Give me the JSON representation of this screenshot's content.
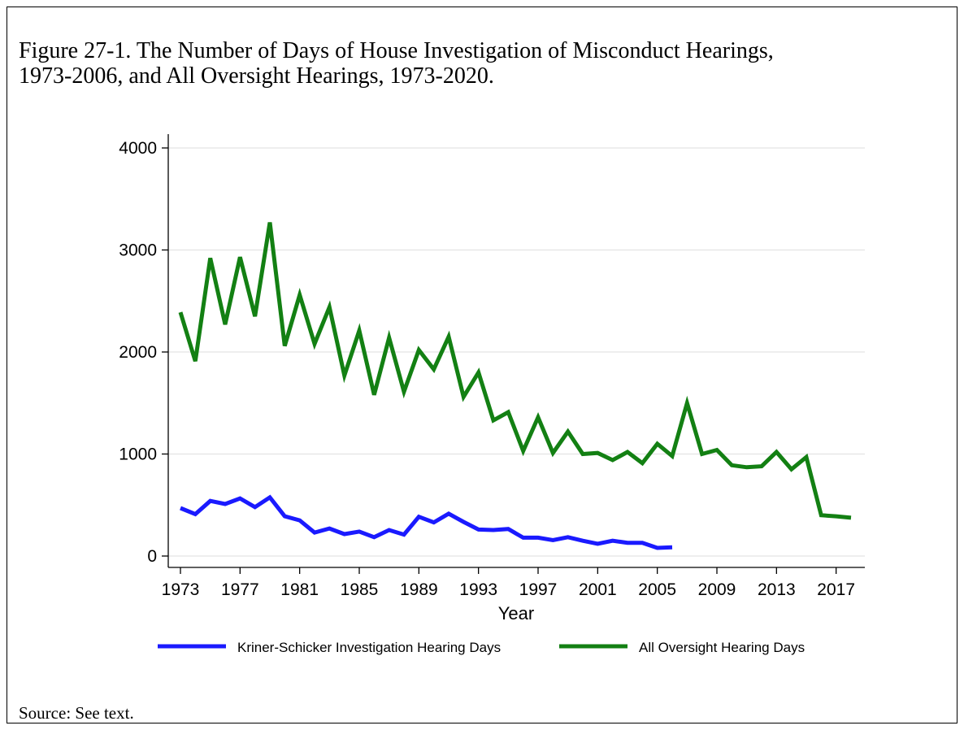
{
  "title": {
    "line1": "Figure 27-1. The Number of Days of House Investigation of Misconduct Hearings,",
    "line2": "1973-2006, and All Oversight Hearings, 1973-2020."
  },
  "source": "Source: See text.",
  "chart_data": {
    "type": "line",
    "xlabel": "Year",
    "ylabel": "",
    "xlim": [
      1973,
      2018
    ],
    "ylim": [
      0,
      4000
    ],
    "xticks": [
      1973,
      1977,
      1981,
      1985,
      1989,
      1993,
      1997,
      2001,
      2005,
      2009,
      2013,
      2017
    ],
    "yticks": [
      0,
      1000,
      2000,
      3000,
      4000
    ],
    "grid": true,
    "legend_position": "bottom",
    "series": [
      {
        "name": "Kriner-Schicker Investigation Hearing Days",
        "color": "#1a1aff",
        "x": [
          1973,
          1974,
          1975,
          1976,
          1977,
          1978,
          1979,
          1980,
          1981,
          1982,
          1983,
          1984,
          1985,
          1986,
          1987,
          1988,
          1989,
          1990,
          1991,
          1992,
          1993,
          1994,
          1995,
          1996,
          1997,
          1998,
          1999,
          2000,
          2001,
          2002,
          2003,
          2004,
          2005,
          2006
        ],
        "y": [
          470,
          410,
          540,
          510,
          565,
          480,
          575,
          390,
          350,
          230,
          270,
          215,
          240,
          185,
          255,
          210,
          385,
          330,
          415,
          335,
          260,
          255,
          265,
          180,
          180,
          155,
          185,
          150,
          120,
          150,
          130,
          130,
          80,
          85
        ]
      },
      {
        "name": "All Oversight Hearing Days",
        "color": "#138013",
        "x": [
          1973,
          1974,
          1975,
          1976,
          1977,
          1978,
          1979,
          1980,
          1981,
          1982,
          1983,
          1984,
          1985,
          1986,
          1987,
          1988,
          1989,
          1990,
          1991,
          1992,
          1993,
          1994,
          1995,
          1996,
          1997,
          1998,
          1999,
          2000,
          2001,
          2002,
          2003,
          2004,
          2005,
          2006,
          2007,
          2008,
          2009,
          2010,
          2011,
          2012,
          2013,
          2014,
          2015,
          2016,
          2017,
          2018
        ],
        "y": [
          2390,
          1910,
          2920,
          2270,
          2930,
          2350,
          3270,
          2060,
          2560,
          2080,
          2440,
          1770,
          2210,
          1580,
          2140,
          1610,
          2020,
          1830,
          2150,
          1560,
          1800,
          1330,
          1410,
          1030,
          1360,
          1010,
          1220,
          1000,
          1010,
          940,
          1020,
          910,
          1100,
          980,
          1500,
          1000,
          1040,
          890,
          870,
          880,
          1020,
          850,
          970,
          400,
          390,
          375
        ]
      }
    ]
  }
}
